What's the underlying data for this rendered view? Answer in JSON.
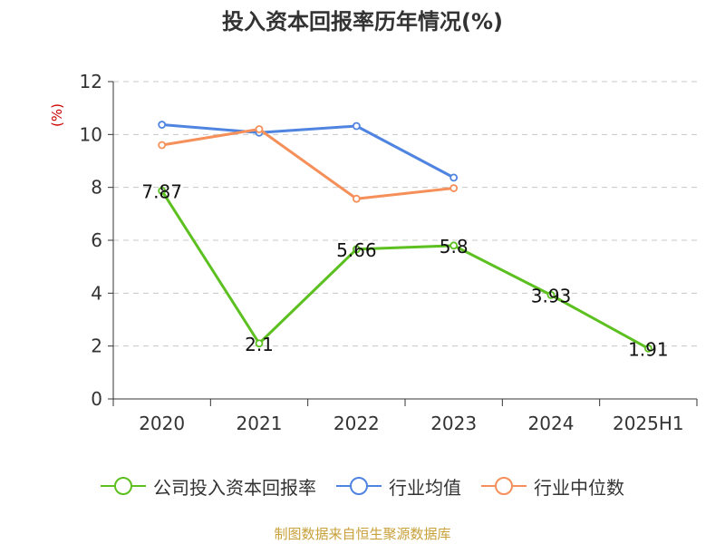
{
  "chart_data": {
    "type": "line",
    "title": "投入资本回报率历年情况(%)",
    "ylabel": "(%)",
    "xlabel": "",
    "categories": [
      "2020",
      "2021",
      "2022",
      "2023",
      "2024",
      "2025H1"
    ],
    "ylim": [
      0,
      12
    ],
    "yticks": [
      0,
      2,
      4,
      6,
      8,
      10,
      12
    ],
    "grid": true,
    "legend_position": "bottom",
    "series": [
      {
        "name": "公司投入资本回报率",
        "color": "#5cc020",
        "values": [
          7.87,
          2.1,
          5.66,
          5.8,
          3.93,
          1.91
        ],
        "labels": [
          "7.87",
          "2.1",
          "5.66",
          "5.8",
          "3.93",
          "1.91"
        ]
      },
      {
        "name": "行业均值",
        "color": "#4f84e0",
        "values": [
          10.37,
          10.07,
          10.32,
          8.37,
          null,
          null
        ]
      },
      {
        "name": "行业中位数",
        "color": "#f5905a",
        "values": [
          9.6,
          10.2,
          7.57,
          7.97,
          null,
          null
        ]
      }
    ],
    "source": "制图数据来自恒生聚源数据库"
  }
}
